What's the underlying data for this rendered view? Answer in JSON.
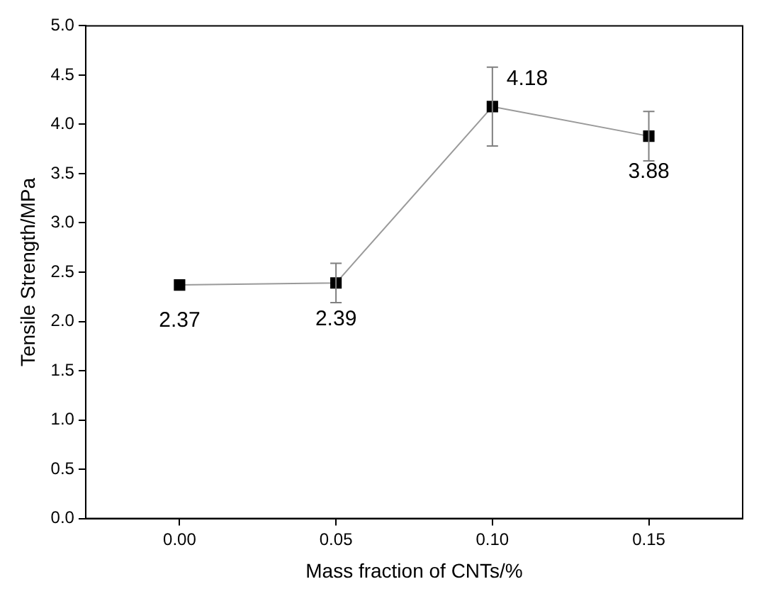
{
  "chart_data": {
    "type": "line",
    "xlabel": "Mass fraction of CNTs/%",
    "ylabel": "Tensile Strength/MPa",
    "x": [
      0,
      0.05,
      0.1,
      0.15
    ],
    "series": [
      {
        "color": "#000000",
        "values": [
          2.37,
          2.39,
          4.18,
          3.88
        ],
        "errors": [
          null,
          0.2,
          0.4,
          0.25
        ]
      }
    ],
    "xlim": [
      -0.03,
      0.18
    ],
    "xticks": [
      {
        "value": 0,
        "label": "0.00"
      },
      0.05,
      {
        "value": 0.1,
        "label": "0.10"
      },
      0.15
    ],
    "ylim": [
      0,
      5
    ],
    "yticks": [
      {
        "value": 0,
        "label": "0.0"
      },
      0.5,
      {
        "value": 1,
        "label": "1.0"
      },
      1.5,
      {
        "value": 2,
        "label": "2.0"
      },
      2.5,
      {
        "value": 3,
        "label": "3.0"
      },
      3.5,
      {
        "value": 4,
        "label": "4.0"
      },
      4.5,
      {
        "value": 5,
        "label": "5.0"
      }
    ],
    "data_labels": true,
    "marker": "square",
    "line_style": "solid",
    "grid": false,
    "legend": false
  }
}
